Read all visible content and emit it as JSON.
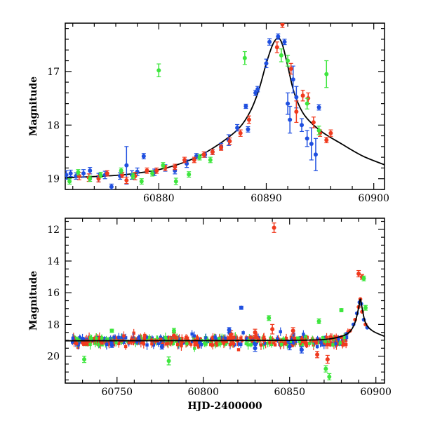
{
  "colors": {
    "blue": "#1f4fe0",
    "red": "#f03a1e",
    "green": "#3ee63e",
    "model": "#000000"
  },
  "chart_data": [
    {
      "type": "scatter",
      "title": "",
      "xlabel": "",
      "ylabel": "Magnitude",
      "xlim": [
        60871.3,
        60901
      ],
      "ylim": [
        19.2,
        16.1
      ],
      "y_inverted": true,
      "xticks": [
        60880,
        60890,
        60900
      ],
      "xtick_labels": [
        "60880",
        "60890",
        "60900"
      ],
      "yticks": [
        17,
        18,
        19
      ],
      "ytick_labels": [
        "17",
        "18",
        "19"
      ],
      "grid": false,
      "legend": "none",
      "model_curve": {
        "color": "#000000",
        "points": [
          [
            60871.3,
            18.98
          ],
          [
            60874,
            18.96
          ],
          [
            60877,
            18.92
          ],
          [
            60880,
            18.83
          ],
          [
            60882,
            18.72
          ],
          [
            60884,
            18.55
          ],
          [
            60886,
            18.3
          ],
          [
            60887.5,
            18.05
          ],
          [
            60888.5,
            17.75
          ],
          [
            60889.3,
            17.35
          ],
          [
            60890,
            16.85
          ],
          [
            60890.6,
            16.5
          ],
          [
            60891.1,
            16.38
          ],
          [
            60891.5,
            16.5
          ],
          [
            60892,
            16.9
          ],
          [
            60892.6,
            17.4
          ],
          [
            60893.5,
            17.8
          ],
          [
            60895,
            18.1
          ],
          [
            60897,
            18.35
          ],
          [
            60899,
            18.58
          ],
          [
            60901,
            18.74
          ]
        ]
      },
      "series": [
        {
          "name": "",
          "color": "#1f4fe0",
          "points": [
            [
              60871.4,
              18.93,
              0.08
            ],
            [
              60871.8,
              18.9,
              0.06
            ],
            [
              60872.3,
              18.95,
              0.06
            ],
            [
              60873.0,
              18.9,
              0.07
            ],
            [
              60873.6,
              18.85,
              0.06
            ],
            [
              60874.4,
              18.98,
              0.08
            ],
            [
              60875.0,
              18.93,
              0.07
            ],
            [
              60875.6,
              19.15,
              0.05
            ],
            [
              60876.4,
              18.95,
              0.06
            ],
            [
              60877.0,
              18.75,
              0.35
            ],
            [
              60877.5,
              18.93,
              0.08
            ],
            [
              60878.0,
              18.87,
              0.07
            ],
            [
              60878.6,
              18.58,
              0.05
            ],
            [
              60879.6,
              18.88,
              0.06
            ],
            [
              60880.6,
              18.8,
              0.06
            ],
            [
              60881.5,
              18.85,
              0.06
            ],
            [
              60882.6,
              18.72,
              0.07
            ],
            [
              60883.5,
              18.58,
              0.05
            ],
            [
              60884.3,
              18.55,
              0.05
            ],
            [
              60885.0,
              18.5,
              0.05
            ],
            [
              60885.8,
              18.4,
              0.06
            ],
            [
              60886.5,
              18.28,
              0.1
            ],
            [
              60887.3,
              18.05,
              0.06
            ],
            [
              60888.1,
              17.65,
              0.04
            ],
            [
              60888.3,
              18.08,
              0.05
            ],
            [
              60889.0,
              17.4,
              0.05
            ],
            [
              60889.2,
              17.33,
              0.05
            ],
            [
              60890.0,
              16.85,
              0.08
            ],
            [
              60890.3,
              16.45,
              0.06
            ],
            [
              60891.1,
              16.35,
              0.05
            ],
            [
              60891.7,
              16.45,
              0.05
            ],
            [
              60892.0,
              17.6,
              0.2
            ],
            [
              60892.2,
              17.9,
              0.25
            ],
            [
              60892.5,
              17.15,
              0.25
            ],
            [
              60892.8,
              17.48,
              0.2
            ],
            [
              60893.3,
              18.0,
              0.12
            ],
            [
              60893.8,
              18.25,
              0.15
            ],
            [
              60894.2,
              18.35,
              0.3
            ],
            [
              60894.6,
              18.55,
              0.3
            ],
            [
              60894.9,
              17.67,
              0.05
            ]
          ]
        },
        {
          "name": "",
          "color": "#f03a1e",
          "points": [
            [
              60872.6,
              18.95,
              0.07
            ],
            [
              60873.5,
              18.98,
              0.07
            ],
            [
              60874.4,
              19.0,
              0.06
            ],
            [
              60875.2,
              18.9,
              0.05
            ],
            [
              60876.6,
              18.93,
              0.05
            ],
            [
              60877.0,
              19.03,
              0.06
            ],
            [
              60877.8,
              18.95,
              0.07
            ],
            [
              60878.9,
              18.85,
              0.05
            ],
            [
              60879.8,
              18.85,
              0.05
            ],
            [
              60880.6,
              18.8,
              0.05
            ],
            [
              60881.5,
              18.78,
              0.05
            ],
            [
              60882.4,
              18.65,
              0.05
            ],
            [
              60883.3,
              18.65,
              0.05
            ],
            [
              60884.2,
              18.55,
              0.05
            ],
            [
              60885.0,
              18.5,
              0.05
            ],
            [
              60885.8,
              18.42,
              0.05
            ],
            [
              60886.6,
              18.3,
              0.06
            ],
            [
              60887.6,
              18.15,
              0.06
            ],
            [
              60888.4,
              17.9,
              0.07
            ],
            [
              60891.0,
              16.55,
              0.1
            ],
            [
              60891.5,
              16.12,
              0.06
            ],
            [
              60892.3,
              16.95,
              0.1
            ],
            [
              60892.8,
              17.75,
              0.2
            ],
            [
              60893.4,
              17.45,
              0.1
            ],
            [
              60893.9,
              17.5,
              0.1
            ],
            [
              60894.4,
              17.95,
              0.1
            ],
            [
              60895.0,
              18.15,
              0.06
            ],
            [
              60895.6,
              18.28,
              0.05
            ],
            [
              60896.0,
              18.15,
              0.06
            ]
          ]
        },
        {
          "name": "",
          "color": "#3ee63e",
          "points": [
            [
              60871.7,
              19.05,
              0.05
            ],
            [
              60872.5,
              18.88,
              0.05
            ],
            [
              60873.6,
              19.0,
              0.05
            ],
            [
              60874.6,
              18.93,
              0.05
            ],
            [
              60876.5,
              18.85,
              0.05
            ],
            [
              60877.6,
              18.95,
              0.05
            ],
            [
              60878.4,
              19.05,
              0.05
            ],
            [
              60879.4,
              18.9,
              0.05
            ],
            [
              60880.0,
              16.98,
              0.12
            ],
            [
              60880.4,
              18.75,
              0.05
            ],
            [
              60881.6,
              19.05,
              0.06
            ],
            [
              60882.8,
              18.92,
              0.05
            ],
            [
              60883.8,
              18.6,
              0.05
            ],
            [
              60884.8,
              18.65,
              0.05
            ],
            [
              60888.0,
              16.75,
              0.12
            ],
            [
              60891.4,
              16.7,
              0.12
            ],
            [
              60892.0,
              16.8,
              0.1
            ],
            [
              60893.8,
              17.6,
              0.1
            ],
            [
              60894.9,
              18.1,
              0.08
            ],
            [
              60895.6,
              17.05,
              0.25
            ]
          ]
        }
      ]
    },
    {
      "type": "scatter",
      "title": "",
      "xlabel": "HJD-2400000",
      "ylabel": "Magnitude",
      "xlim": [
        60720,
        60905
      ],
      "ylim": [
        21.7,
        11.3
      ],
      "y_inverted": true,
      "xticks": [
        60750,
        60800,
        60850,
        60900
      ],
      "xtick_labels": [
        "60750",
        "60800",
        "60850",
        "60900"
      ],
      "yticks": [
        12,
        14,
        16,
        18,
        20
      ],
      "ytick_labels": [
        "12",
        "14",
        "16",
        "18",
        "20"
      ],
      "grid": false,
      "legend": "none",
      "model_curve": {
        "color": "#000000",
        "points": [
          [
            60720,
            19.03
          ],
          [
            60800,
            19.02
          ],
          [
            60850,
            19.0
          ],
          [
            60870,
            18.95
          ],
          [
            60880,
            18.75
          ],
          [
            60885,
            18.45
          ],
          [
            60888,
            17.85
          ],
          [
            60890,
            16.95
          ],
          [
            60891,
            16.4
          ],
          [
            60892,
            16.95
          ],
          [
            60894,
            17.9
          ],
          [
            60898,
            18.4
          ],
          [
            60905,
            18.75
          ]
        ]
      },
      "series": [
        {
          "name": "",
          "color": "#f03a1e",
          "points": [
            [
              60841,
              11.9,
              0.3
            ],
            [
              60890,
              14.8,
              0.2
            ],
            [
              60892,
              15.0,
              0.15
            ],
            [
              60872,
              20.2,
              0.25
            ],
            [
              60866,
              19.9,
              0.2
            ],
            [
              60840,
              18.3,
              0.3
            ],
            [
              60830,
              18.5,
              0.2
            ],
            [
              60816,
              18.6,
              0.2
            ],
            [
              60852,
              18.4,
              0.2
            ],
            [
              60783,
              18.7,
              0.2
            ]
          ]
        },
        {
          "name": "",
          "color": "#3ee63e",
          "points": [
            [
              60731,
              20.2,
              0.2
            ],
            [
              60747,
              18.4,
              0.1
            ],
            [
              60780,
              20.3,
              0.25
            ],
            [
              60783,
              18.4,
              0.15
            ],
            [
              60838,
              17.6,
              0.15
            ],
            [
              60867,
              17.8,
              0.15
            ],
            [
              60871,
              20.8,
              0.2
            ],
            [
              60873,
              21.3,
              0.2
            ],
            [
              60880,
              17.1,
              0.1
            ],
            [
              60893,
              15.1,
              0.15
            ],
            [
              60894,
              16.95,
              0.15
            ]
          ]
        },
        {
          "name": "",
          "color": "#1f4fe0",
          "points": [
            [
              60822,
              16.95,
              0.1
            ],
            [
              60850,
              19.4,
              0.2
            ],
            [
              60857,
              19.6,
              0.2
            ],
            [
              60830,
              19.5,
              0.2
            ],
            [
              60747,
              19.3,
              0.15
            ],
            [
              60776,
              19.4,
              0.15
            ],
            [
              60815,
              18.35,
              0.15
            ]
          ]
        }
      ]
    }
  ]
}
